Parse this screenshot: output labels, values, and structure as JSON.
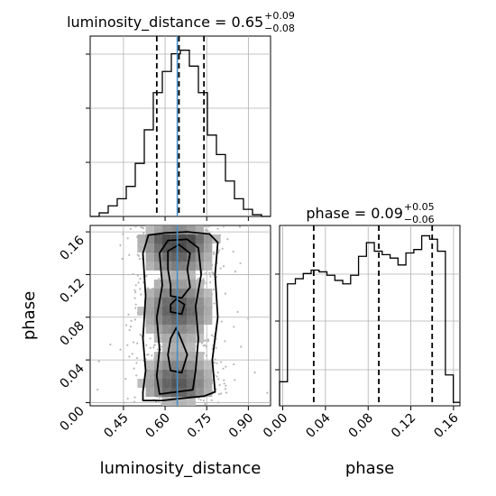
{
  "chart_data": [
    {
      "type": "histogram",
      "panel": "luminosity_distance marginal",
      "title_parts": {
        "name": "luminosity_distance",
        "eq": " = ",
        "value": "0.65",
        "plus": "+0.09",
        "minus": "−0.08"
      },
      "x": {
        "range": [
          0.33,
          0.98
        ],
        "ticks": [
          0.45,
          0.6,
          0.75,
          0.9
        ]
      },
      "bins_left": [
        0.33,
        0.3625,
        0.395,
        0.4275,
        0.46,
        0.4925,
        0.525,
        0.5575,
        0.59,
        0.6225,
        0.655,
        0.6875,
        0.72,
        0.7525,
        0.785,
        0.8175,
        0.85,
        0.8825,
        0.915,
        0.9475
      ],
      "bin_width": 0.0325,
      "counts": [
        0.0,
        0.2,
        0.6,
        1.0,
        1.7,
        3.0,
        4.9,
        7.0,
        8.2,
        9.2,
        9.4,
        8.5,
        7.0,
        4.6,
        3.5,
        2.0,
        1.0,
        0.4,
        0.1,
        0.0
      ],
      "count_max": 10.2,
      "quantile_lines": [
        0.57,
        0.65,
        0.74
      ],
      "truth_line": 0.644
    },
    {
      "type": "heatmap",
      "panel": "luminosity_distance vs phase joint",
      "x": {
        "label": "luminosity_distance",
        "range": [
          0.33,
          0.98
        ],
        "ticks": [
          0.45,
          0.6,
          0.75,
          0.9
        ],
        "tick_labels": [
          "0.45",
          "0.60",
          "0.75",
          "0.90"
        ]
      },
      "y": {
        "label": "phase",
        "range": [
          -0.003,
          0.166
        ],
        "ticks": [
          0.0,
          0.04,
          0.08,
          0.12,
          0.16
        ],
        "tick_labels": [
          "0.00",
          "0.04",
          "0.08",
          "0.12",
          "0.16"
        ]
      },
      "truth_line_x": 0.644,
      "contour_levels": [
        "inner",
        "middle",
        "outer"
      ]
    },
    {
      "type": "histogram",
      "panel": "phase marginal",
      "title_parts": {
        "name": "phase",
        "eq": " = ",
        "value": "0.09",
        "plus": "+0.05",
        "minus": "−0.06"
      },
      "x": {
        "label": "phase",
        "range": [
          -0.003,
          0.166
        ],
        "ticks": [
          0.0,
          0.04,
          0.08,
          0.12,
          0.16
        ],
        "tick_labels": [
          "0.00",
          "0.04",
          "0.08",
          "0.12",
          "0.16"
        ]
      },
      "bins_left": [
        -0.003,
        0.0044,
        0.0118,
        0.0192,
        0.0266,
        0.034,
        0.0414,
        0.0488,
        0.0562,
        0.0636,
        0.071,
        0.0784,
        0.0858,
        0.0932,
        0.1006,
        0.108,
        0.1154,
        0.1228,
        0.1302,
        0.1376,
        0.145,
        0.1524,
        0.1598
      ],
      "bin_width": 0.0074,
      "counts": [
        1.4,
        7.1,
        7.4,
        7.7,
        7.9,
        7.8,
        7.6,
        7.3,
        7.1,
        7.6,
        8.7,
        9.5,
        9.0,
        8.8,
        8.6,
        8.2,
        8.9,
        9.1,
        9.9,
        9.7,
        9.0,
        1.8,
        0.2
      ],
      "count_max": 10.5,
      "quantile_lines": [
        0.029,
        0.09,
        0.14
      ]
    }
  ]
}
